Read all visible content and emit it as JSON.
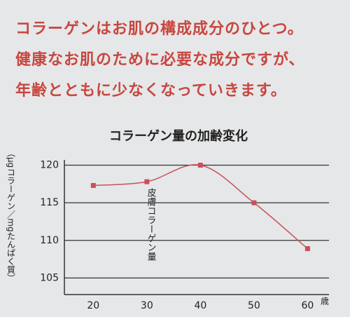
{
  "header": {
    "lines": [
      "コラーゲンはお肌の構成成分のひとつ。",
      "健康なお肌のために必要な成分ですが、",
      "年齢とともに少なくなっていきます。"
    ]
  },
  "chart_data": {
    "type": "line",
    "title": "コラーゲン量の加齢変化",
    "y_label": "皮膚コラーゲン量",
    "y_unit": "（μgコラーゲン／mgたんぱく質）",
    "x_unit": "歳",
    "x": [
      20,
      30,
      40,
      50,
      60
    ],
    "series": [
      {
        "color": "#c9505a",
        "values": [
          117.3,
          117.8,
          120,
          115,
          108.9
        ]
      }
    ],
    "smooth": true,
    "markers": "square",
    "xlim": [
      14.6,
      64
    ],
    "xticks": [
      20,
      30,
      40,
      50,
      60
    ],
    "ylim": [
      102.8,
      120.7
    ],
    "yticks": [
      105,
      110,
      115,
      120
    ],
    "grid": true
  }
}
